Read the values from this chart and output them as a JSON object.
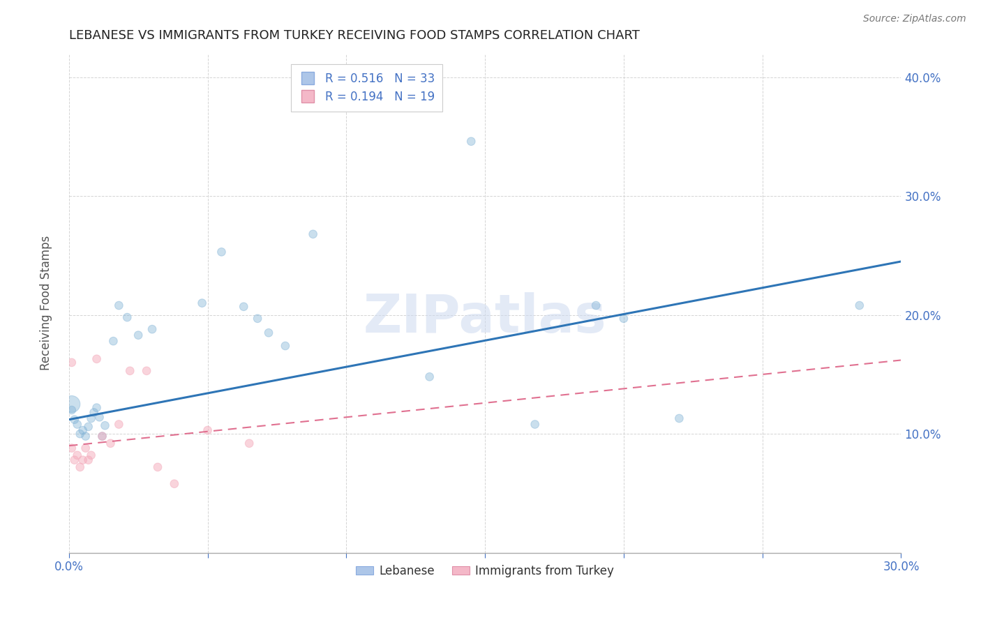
{
  "title": "LEBANESE VS IMMIGRANTS FROM TURKEY RECEIVING FOOD STAMPS CORRELATION CHART",
  "source": "Source: ZipAtlas.com",
  "ylabel": "Receiving Food Stamps",
  "xlim": [
    0.0,
    0.3
  ],
  "ylim": [
    0.0,
    0.42
  ],
  "background_color": "#ffffff",
  "grid_color": "#d0d0d0",
  "blue_color": "#7bafd4",
  "pink_color": "#f4aabb",
  "axis_label_color": "#4472c4",
  "legend_R1": "R = 0.516",
  "legend_N1": "N = 33",
  "legend_R2": "R = 0.194",
  "legend_N2": "N = 19",
  "watermark": "ZIPatlas",
  "lebanese_x": [
    0.001,
    0.002,
    0.003,
    0.004,
    0.005,
    0.006,
    0.007,
    0.008,
    0.009,
    0.01,
    0.011,
    0.012,
    0.013,
    0.016,
    0.018,
    0.021,
    0.025,
    0.03,
    0.048,
    0.055,
    0.063,
    0.068,
    0.072,
    0.078,
    0.088,
    0.13,
    0.145,
    0.168,
    0.19,
    0.2,
    0.22,
    0.285,
    0.001
  ],
  "lebanese_y": [
    0.12,
    0.112,
    0.108,
    0.1,
    0.103,
    0.098,
    0.106,
    0.113,
    0.118,
    0.122,
    0.114,
    0.098,
    0.107,
    0.178,
    0.208,
    0.198,
    0.183,
    0.188,
    0.21,
    0.253,
    0.207,
    0.197,
    0.185,
    0.174,
    0.268,
    0.148,
    0.346,
    0.108,
    0.208,
    0.197,
    0.113,
    0.208,
    0.125
  ],
  "lebanese_size": [
    70,
    70,
    70,
    70,
    70,
    70,
    70,
    70,
    70,
    70,
    70,
    70,
    70,
    70,
    70,
    70,
    70,
    70,
    70,
    70,
    70,
    70,
    70,
    70,
    70,
    70,
    70,
    70,
    70,
    70,
    70,
    70,
    300
  ],
  "turkey_x": [
    0.001,
    0.002,
    0.003,
    0.004,
    0.005,
    0.006,
    0.007,
    0.008,
    0.01,
    0.012,
    0.015,
    0.018,
    0.022,
    0.028,
    0.032,
    0.038,
    0.05,
    0.065,
    0.001
  ],
  "turkey_y": [
    0.088,
    0.078,
    0.082,
    0.072,
    0.078,
    0.088,
    0.078,
    0.082,
    0.163,
    0.098,
    0.092,
    0.108,
    0.153,
    0.153,
    0.072,
    0.058,
    0.103,
    0.092,
    0.16
  ],
  "turkey_size": [
    70,
    70,
    70,
    70,
    70,
    70,
    70,
    70,
    70,
    70,
    70,
    70,
    70,
    70,
    70,
    70,
    70,
    70,
    70
  ],
  "blue_line_x": [
    0.0,
    0.3
  ],
  "blue_line_y": [
    0.112,
    0.245
  ],
  "pink_line_x": [
    0.0,
    0.3
  ],
  "pink_line_y": [
    0.09,
    0.162
  ]
}
